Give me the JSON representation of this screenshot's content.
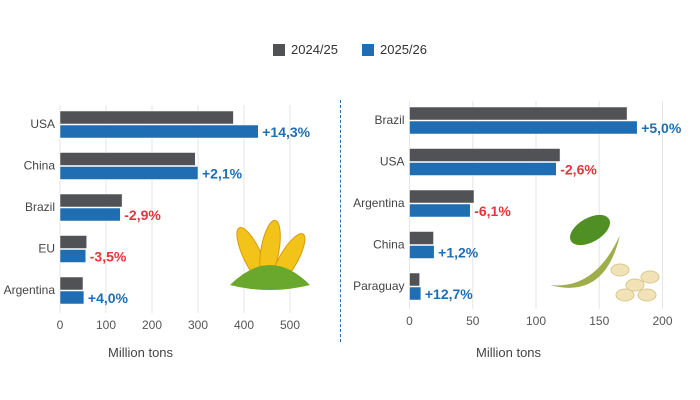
{
  "legend": [
    {
      "name": "2024/25",
      "color": "#505256"
    },
    {
      "name": "2025/26",
      "color": "#1f6db3"
    }
  ],
  "colors": {
    "positive": "#1f6db3",
    "negative": "#e8333a",
    "grid": "#e6e6e6"
  },
  "chart_data": [
    {
      "type": "bar",
      "orientation": "horizontal",
      "crop_image": "corn",
      "categories": [
        "USA",
        "China",
        "Brazil",
        "EU",
        "Argentina"
      ],
      "series": [
        {
          "name": "2024/25",
          "values": [
            377,
            294,
            135,
            58,
            50
          ]
        },
        {
          "name": "2025/26",
          "values": [
            431,
            300,
            131,
            56,
            52
          ]
        }
      ],
      "data_labels": [
        "+14,3%",
        "+2,1%",
        "-2,9%",
        "-3,5%",
        "+4,0%"
      ],
      "xlabel": "Million tons",
      "xlim": [
        0,
        550
      ],
      "xticks": [
        0,
        100,
        200,
        300,
        400,
        500
      ],
      "grid": true
    },
    {
      "type": "bar",
      "orientation": "horizontal",
      "crop_image": "soybean",
      "categories": [
        "Brazil",
        "USA",
        "Argentina",
        "China",
        "Paraguay"
      ],
      "series": [
        {
          "name": "2024/25",
          "values": [
            172,
            119,
            51,
            19,
            8
          ]
        },
        {
          "name": "2025/26",
          "values": [
            180,
            116,
            48,
            19.5,
            9
          ]
        }
      ],
      "data_labels": [
        "+5,0%",
        "-2,6%",
        "-6,1%",
        "+1,2%",
        "+12,7%"
      ],
      "xlabel": "Million tons",
      "xlim": [
        0,
        215
      ],
      "xticks": [
        0,
        50,
        100,
        150,
        200
      ],
      "grid": true
    }
  ]
}
